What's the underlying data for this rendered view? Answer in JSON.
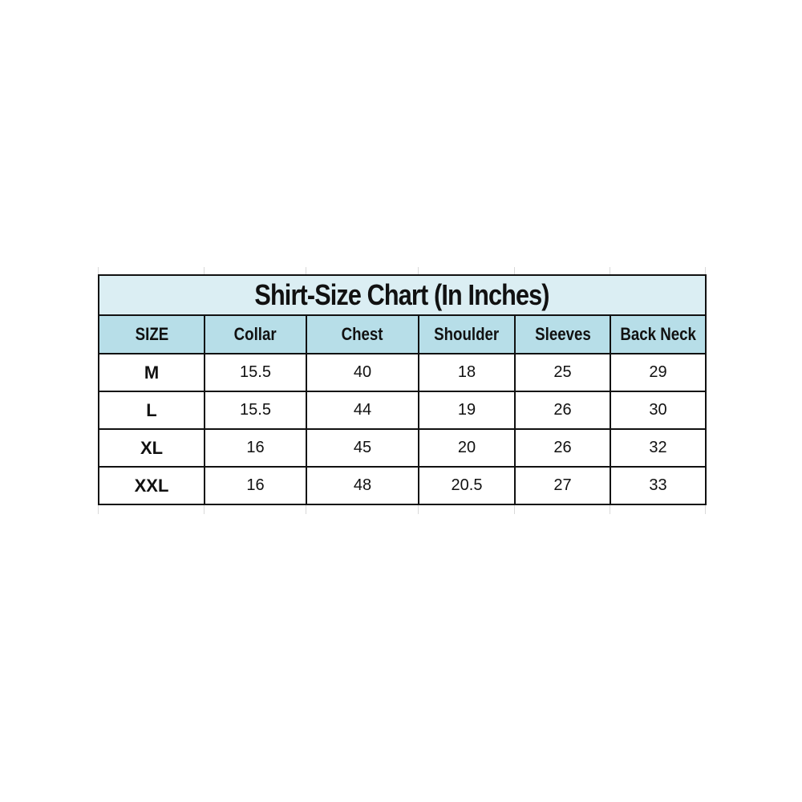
{
  "title": "Shirt-Size Chart (In Inches)",
  "columns": [
    "SIZE",
    "Collar",
    "Chest",
    "Shoulder",
    "Sleeves",
    "Back Neck"
  ],
  "rows": [
    [
      "M",
      "15.5",
      "40",
      "18",
      "25",
      "29"
    ],
    [
      "L",
      "15.5",
      "44",
      "19",
      "26",
      "30"
    ],
    [
      "XL",
      "16",
      "45",
      "20",
      "26",
      "32"
    ],
    [
      "XXL",
      "16",
      "48",
      "20.5",
      "27",
      "33"
    ]
  ],
  "colors": {
    "title_bg": "#dbeef3",
    "header_bg": "#b7dee8",
    "border": "#111111"
  }
}
